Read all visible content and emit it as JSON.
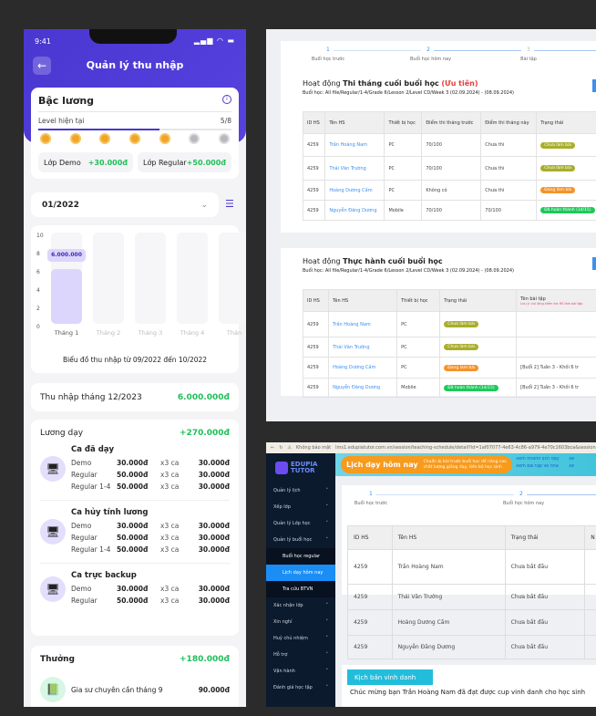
{
  "phone": {
    "status_time": "9:41",
    "title": "Quản lý thu nhập",
    "level_card": {
      "title": "Bậc lương",
      "current_label": "Level hiện tại",
      "level": "5/8",
      "level_progress": 0.625,
      "medals_earned": 5,
      "medals_total": 7,
      "demo_label": "Lớp Demo",
      "demo_value": "+30.000đ",
      "regular_label": "Lớp Regular",
      "regular_value": "+50.000đ"
    },
    "month_select": "01/2022",
    "chart": {
      "type": "bar",
      "yticks": [
        "10",
        "8",
        "6",
        "4",
        "2",
        "0"
      ],
      "ylim": [
        0,
        10
      ],
      "categories": [
        "Tháng 1",
        "Tháng 2",
        "Tháng 3",
        "Tháng 4",
        "Thán"
      ],
      "values": [
        6,
        null,
        null,
        null,
        null
      ],
      "tooltip": "6.000.000",
      "caption": "Biểu đồ thu nhập từ 09/2022 đến 10/2022"
    },
    "income": {
      "label": "Thu nhập tháng 12/2023",
      "value": "6.000.000đ"
    },
    "teaching": {
      "label": "Lương dạy",
      "total": "+270.000đ",
      "groups": [
        {
          "title": "Ca đã dạy",
          "rows": [
            [
              "Demo",
              "30.000đ",
              "x3 ca",
              "30.000đ"
            ],
            [
              "Regular",
              "50.000đ",
              "x3 ca",
              "30.000đ"
            ],
            [
              "Regular 1-4",
              "50.000đ",
              "x3 ca",
              "30.000đ"
            ]
          ]
        },
        {
          "title": "Ca hủy tính lương",
          "rows": [
            [
              "Demo",
              "30.000đ",
              "x3 ca",
              "30.000đ"
            ],
            [
              "Regular",
              "50.000đ",
              "x3 ca",
              "30.000đ"
            ],
            [
              "Regular 1-4",
              "50.000đ",
              "x3 ca",
              "30.000đ"
            ]
          ]
        },
        {
          "title": "Ca trực backup",
          "rows": [
            [
              "Demo",
              "30.000đ",
              "x3 ca",
              "30.000đ"
            ],
            [
              "Regular",
              "50.000đ",
              "x3 ca",
              "30.000đ"
            ]
          ]
        }
      ]
    },
    "bonus": {
      "label": "Thưởng",
      "total": "+180.000đ",
      "item": "Gia sư chuyên cần tháng 9",
      "value": "90.000đ"
    }
  },
  "web_top": {
    "steps": [
      {
        "n": "1",
        "label": "Buổi học trước"
      },
      {
        "n": "2",
        "label": "Buổi học hôm nay"
      },
      {
        "n": "3",
        "label": "Bài tập"
      }
    ],
    "exam": {
      "prefix": "Hoạt động ",
      "title": "Thi tháng cuối buổi học",
      "priority": "(Ưu tiên)",
      "session": "Buổi học: All file/Regular/1-4/Grade 6/Lesson 2/Level CD/Week 3 (02.09.2024) - (08.09.2024)",
      "headers": [
        "ID HS",
        "Tên HS",
        "Thiết bị học",
        "Điểm thi tháng trước",
        "Điểm thi tháng này",
        "Trạng thái"
      ],
      "rows": [
        [
          "4259",
          "Trần Hoàng Nam",
          "PC",
          "70/100",
          "Chưa thi",
          "Chưa làm bài"
        ],
        [
          "4259",
          "Thái Văn Trường",
          "PC",
          "70/100",
          "Chưa thi",
          "Chưa làm bài"
        ],
        [
          "4259",
          "Hoàng Dương Cầm",
          "PC",
          "Không có",
          "Chưa thi",
          "Đang làm bài"
        ],
        [
          "4259",
          "Nguyễn Đăng Dương",
          "Mobile",
          "70/100",
          "70/100",
          "Đã hoàn thành (14/15)"
        ]
      ]
    },
    "practice": {
      "prefix": "Hoạt động ",
      "title": "Thực hành cuối buổi học",
      "session": "Buổi học: All file/Regular/1-4/Grade 6/Lesson 2/Level CD/Week 3 (02.09.2024) - (08.09.2024)",
      "headers": [
        "ID HS",
        "Tên HS",
        "Thiết bị học",
        "Trạng thái",
        "Tên bài tập"
      ],
      "note": "Lưu ý: vui lòng kiểm tra HS làm bài tập",
      "rows": [
        [
          "4259",
          "Trần Hoàng Nam",
          "PC",
          "Chưa làm bài",
          ""
        ],
        [
          "4259",
          "Thái Văn Trường",
          "PC",
          "Chưa làm bài",
          ""
        ],
        [
          "4259",
          "Hoàng Dương Cầm",
          "PC",
          "Đang làm bài",
          "[Buổi 2] Tuần 3 - Khối 6 tr"
        ],
        [
          "4259",
          "Nguyễn Đăng Dương",
          "Mobile",
          "Đã hoàn thành (14/15)",
          "[Buổi 2] Tuần 3 - Khối 6 tr"
        ]
      ]
    },
    "status_colors": {
      "Chưa làm bài": "#a9ae2c",
      "Đang làm bài": "#f5932a",
      "Đã hoàn thành (14/15)": "#1ec95b"
    }
  },
  "browser": {
    "security": "Không bảo mật",
    "url": "lms1.edupiatutor.com.vn/session/teaching-schedule/detail?id=1af07077-4e63-4c86-a979-4e70c1603bca&session",
    "logo": "EDUPIA TUTOR",
    "menu": [
      {
        "label": "Quản lý lịch"
      },
      {
        "label": "Xếp lớp"
      },
      {
        "label": "Quản lý Lớp học"
      },
      {
        "label": "Quản lý buổi học",
        "open": true
      },
      {
        "label": "Buổi học regular",
        "sub": true
      },
      {
        "label": "Lịch dạy hôm nay",
        "sub": true,
        "active": true
      },
      {
        "label": "Tra cứu BTVN",
        "sub": true
      },
      {
        "label": "Xác nhận lớp"
      },
      {
        "label": "Xin nghỉ"
      },
      {
        "label": "Huỷ chủ nhiệm"
      },
      {
        "label": "Hỗ trợ"
      },
      {
        "label": "Vận hành"
      },
      {
        "label": "Đánh giá học tập"
      }
    ],
    "banner": {
      "title": "Lịch dạy hôm nay",
      "subtitle": "Chuẩn bị bài trước buổi học để nâng cao chất lượng giảng dạy, tiến bộ học sinh",
      "bullets": [
        "Xem nhanh lịch dạy",
        "Xem bài tập về nhà",
        "Xe",
        "Xe"
      ]
    },
    "steps": [
      {
        "n": "1",
        "label": "Buổi học trước"
      },
      {
        "n": "2",
        "label": "Buổi học hôm nay"
      }
    ],
    "headers": [
      "ID HS",
      "Tên HS",
      "Trạng thái",
      "N"
    ],
    "rows": [
      [
        "4259",
        "Trần Hoàng Nam",
        "Chưa bắt đầu"
      ],
      [
        "4259",
        "Thái Văn Trường",
        "Chưa bắt đầu"
      ],
      [
        "4259",
        "Hoàng Dương Cầm",
        "Chưa bắt đầu"
      ],
      [
        "4259",
        "Nguyễn Đăng Dương",
        "Chưa bắt đầu"
      ]
    ],
    "honor_button": "Kịch bản vinh danh",
    "honor_text": "Chúc mừng bạn Trần Hoàng Nam đã đạt được cup vinh danh cho học sinh"
  }
}
